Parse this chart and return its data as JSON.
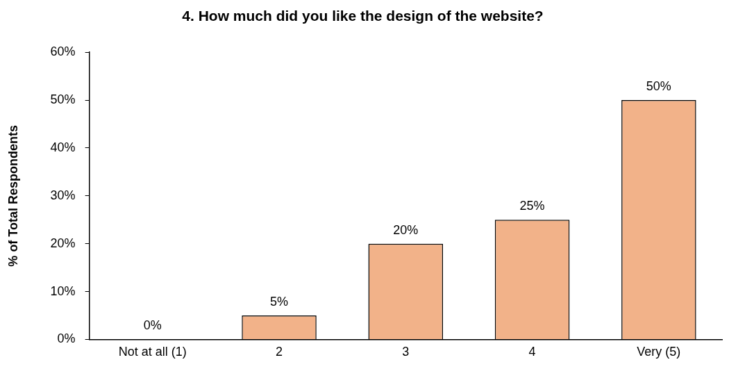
{
  "chart_data": {
    "type": "bar",
    "title": "4. How much did you like the design of the website?",
    "ylabel": "% of Total Respondents",
    "categories": [
      "Not at all (1)",
      "2",
      "3",
      "4",
      "Very (5)"
    ],
    "values": [
      0,
      5,
      20,
      25,
      50
    ],
    "value_labels": [
      "0%",
      "5%",
      "20%",
      "25%",
      "50%"
    ],
    "color": "#f2b289",
    "ylim": [
      0,
      60
    ],
    "yticks": [
      {
        "value": 0,
        "label": "0%"
      },
      {
        "value": 10,
        "label": "10%"
      },
      {
        "value": 20,
        "label": "20%"
      },
      {
        "value": 30,
        "label": "30%"
      },
      {
        "value": 40,
        "label": "40%"
      },
      {
        "value": 50,
        "label": "50%"
      },
      {
        "value": 60,
        "label": "60%"
      }
    ],
    "grid": false,
    "legend": false
  }
}
